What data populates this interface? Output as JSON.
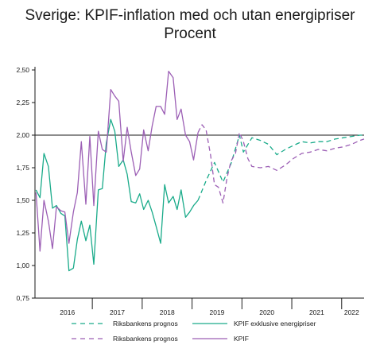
{
  "chart_data": {
    "type": "line",
    "title": "Sverige: KPIF-inflation med och utan energipriser",
    "subtitle": "Procent",
    "xlabel": "",
    "ylabel": "",
    "ylim": [
      0.75,
      2.5
    ],
    "xlim": [
      2015.85,
      2022.45
    ],
    "y_ticks": [
      "2,50",
      "2,25",
      "2,00",
      "1,75",
      "1,50",
      "1,25",
      "1,00",
      "0,75"
    ],
    "y_tick_values": [
      2.5,
      2.25,
      2.0,
      1.75,
      1.5,
      1.25,
      1.0,
      0.75
    ],
    "x_ticks": [
      "2016",
      "2017",
      "2018",
      "2019",
      "2020",
      "2021",
      "2022"
    ],
    "x_tick_values": [
      2016.5,
      2017.5,
      2018.5,
      2019.5,
      2020.5,
      2021.5,
      2022.2
    ],
    "x_boundaries": [
      2017,
      2018,
      2019,
      2020,
      2021,
      2022
    ],
    "reference_line": 2.0,
    "grid": false,
    "legend_position": "bottom",
    "colors": {
      "teal": "#1aab8a",
      "purple": "#9c5fb5",
      "axis": "#1a1a1a"
    },
    "series": [
      {
        "name": "KPIF exklusive energipriser",
        "color": "#1aab8a",
        "style": "solid",
        "x": [
          2015.87,
          2015.95,
          2016.03,
          2016.12,
          2016.2,
          2016.28,
          2016.37,
          2016.45,
          2016.53,
          2016.62,
          2016.7,
          2016.78,
          2016.87,
          2016.95,
          2017.03,
          2017.12,
          2017.2,
          2017.28,
          2017.37,
          2017.45,
          2017.53,
          2017.62,
          2017.7,
          2017.78,
          2017.87,
          2017.95,
          2018.03,
          2018.12,
          2018.2,
          2018.28,
          2018.37,
          2018.45,
          2018.53,
          2018.62,
          2018.7,
          2018.78,
          2018.87,
          2018.95,
          2019.03,
          2019.12
        ],
        "y": [
          1.58,
          1.52,
          1.86,
          1.76,
          1.44,
          1.46,
          1.4,
          1.38,
          0.96,
          0.98,
          1.2,
          1.34,
          1.19,
          1.31,
          1.01,
          1.58,
          1.59,
          1.94,
          2.12,
          2.03,
          1.76,
          1.81,
          1.7,
          1.49,
          1.48,
          1.55,
          1.43,
          1.5,
          1.41,
          1.3,
          1.17,
          1.62,
          1.48,
          1.53,
          1.43,
          1.58,
          1.37,
          1.41,
          1.46,
          1.5
        ]
      },
      {
        "name": "KPIF",
        "color": "#9c5fb5",
        "style": "solid",
        "x": [
          2015.87,
          2015.95,
          2016.03,
          2016.12,
          2016.2,
          2016.28,
          2016.37,
          2016.45,
          2016.53,
          2016.62,
          2016.7,
          2016.78,
          2016.87,
          2016.95,
          2017.03,
          2017.12,
          2017.2,
          2017.28,
          2017.37,
          2017.45,
          2017.53,
          2017.62,
          2017.7,
          2017.78,
          2017.87,
          2017.95,
          2018.03,
          2018.12,
          2018.2,
          2018.28,
          2018.37,
          2018.45,
          2018.53,
          2018.62,
          2018.7,
          2018.78,
          2018.87,
          2018.95,
          2019.03,
          2019.12
        ],
        "y": [
          1.56,
          1.11,
          1.5,
          1.34,
          1.13,
          1.45,
          1.42,
          1.41,
          1.17,
          1.41,
          1.56,
          1.95,
          1.47,
          1.99,
          1.46,
          2.03,
          1.89,
          1.87,
          2.35,
          2.3,
          2.26,
          1.8,
          2.06,
          1.87,
          1.69,
          1.74,
          2.04,
          1.88,
          2.07,
          2.22,
          2.22,
          2.16,
          2.49,
          2.44,
          2.12,
          2.2,
          2.0,
          1.95,
          1.81,
          2.02
        ]
      },
      {
        "name": "Riksbankens prognos",
        "color": "#1aab8a",
        "style": "dashed",
        "x": [
          2019.12,
          2019.28,
          2019.45,
          2019.62,
          2019.78,
          2019.95,
          2020.03,
          2020.2,
          2020.37,
          2020.53,
          2020.7,
          2020.87,
          2021.03,
          2021.2,
          2021.37,
          2021.53,
          2021.7,
          2021.87,
          2022.03,
          2022.2,
          2022.37,
          2022.45
        ],
        "y": [
          1.5,
          1.65,
          1.79,
          1.64,
          1.78,
          2.0,
          1.87,
          1.98,
          1.96,
          1.93,
          1.85,
          1.89,
          1.92,
          1.95,
          1.94,
          1.95,
          1.95,
          1.97,
          1.98,
          1.99,
          2.0,
          2.0
        ]
      },
      {
        "name": "Riksbankens prognos",
        "color": "#9c5fb5",
        "style": "dashed",
        "x": [
          2019.12,
          2019.2,
          2019.28,
          2019.37,
          2019.45,
          2019.53,
          2019.62,
          2019.7,
          2019.78,
          2019.87,
          2019.95,
          2020.03,
          2020.12,
          2020.2,
          2020.37,
          2020.53,
          2020.7,
          2020.87,
          2021.03,
          2021.2,
          2021.37,
          2021.53,
          2021.7,
          2021.87,
          2022.03,
          2022.2,
          2022.37,
          2022.45
        ],
        "y": [
          2.02,
          2.08,
          2.04,
          1.85,
          1.62,
          1.6,
          1.48,
          1.67,
          1.8,
          1.86,
          2.02,
          1.95,
          1.82,
          1.76,
          1.75,
          1.76,
          1.73,
          1.77,
          1.82,
          1.86,
          1.87,
          1.89,
          1.88,
          1.9,
          1.91,
          1.93,
          1.96,
          1.97
        ]
      }
    ],
    "legend": [
      {
        "label": "Riksbankens prognos",
        "color": "#1aab8a",
        "style": "dashed"
      },
      {
        "label": "KPIF exklusive energipriser",
        "color": "#1aab8a",
        "style": "solid"
      },
      {
        "label": "Riksbankens prognos",
        "color": "#9c5fb5",
        "style": "dashed"
      },
      {
        "label": "KPIF",
        "color": "#9c5fb5",
        "style": "solid"
      }
    ]
  }
}
